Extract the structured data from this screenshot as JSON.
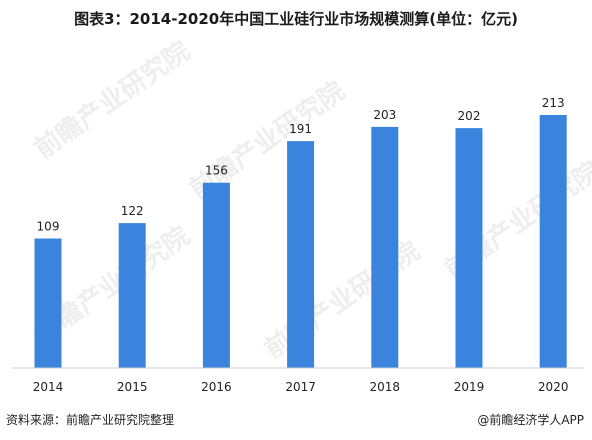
{
  "title": "图表3：2014-2020年中国工业硅行业市场规模测算(单位：亿元)",
  "source": "资料来源：前瞻产业研究院整理",
  "credit": "@前瞻经济学人APP",
  "watermark": "前瞻产业研究院",
  "colors": {
    "bar": "#3a84dd"
  },
  "chart_data": {
    "type": "bar",
    "categories": [
      "2014",
      "2015",
      "2016",
      "2017",
      "2018",
      "2019",
      "2020"
    ],
    "values": [
      109,
      122,
      156,
      191,
      203,
      202,
      213
    ],
    "title": "图表3：2014-2020年中国工业硅行业市场规模测算(单位：亿元)",
    "xlabel": "",
    "ylabel": "",
    "ylim": [
      0,
      240
    ],
    "grid": false,
    "legend": "none"
  }
}
